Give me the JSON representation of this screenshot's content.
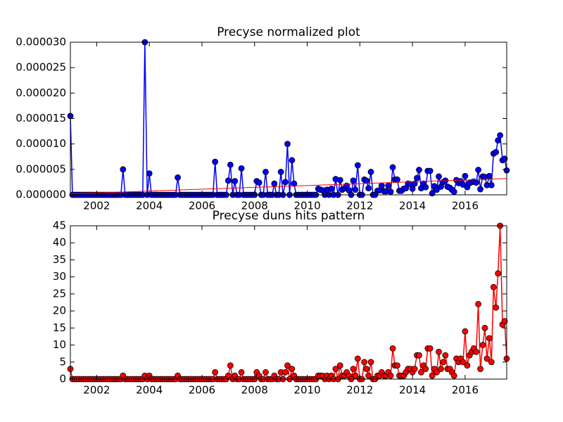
{
  "chart_data": [
    {
      "type": "line",
      "title": "Precyse normalized plot",
      "x": [
        2001,
        2001.08,
        2001.17,
        2001.25,
        2001.33,
        2001.42,
        2001.5,
        2001.58,
        2001.67,
        2001.75,
        2001.83,
        2001.92,
        2002,
        2002.08,
        2002.17,
        2002.25,
        2002.33,
        2002.42,
        2002.5,
        2002.58,
        2002.67,
        2002.75,
        2002.83,
        2002.92,
        2003,
        2003.08,
        2003.17,
        2003.25,
        2003.33,
        2003.42,
        2003.5,
        2003.58,
        2003.67,
        2003.75,
        2003.83,
        2003.92,
        2004,
        2004.08,
        2004.17,
        2004.25,
        2004.33,
        2004.42,
        2004.5,
        2004.58,
        2004.67,
        2004.75,
        2004.83,
        2004.92,
        2005,
        2005.08,
        2005.17,
        2005.25,
        2005.33,
        2005.42,
        2005.5,
        2005.58,
        2005.67,
        2005.75,
        2005.83,
        2005.92,
        2006,
        2006.08,
        2006.17,
        2006.25,
        2006.33,
        2006.42,
        2006.5,
        2006.58,
        2006.67,
        2006.75,
        2006.83,
        2006.92,
        2007,
        2007.08,
        2007.17,
        2007.25,
        2007.33,
        2007.42,
        2007.5,
        2007.58,
        2007.67,
        2007.75,
        2007.83,
        2007.92,
        2008,
        2008.08,
        2008.17,
        2008.25,
        2008.33,
        2008.42,
        2008.5,
        2008.58,
        2008.67,
        2008.75,
        2008.83,
        2008.92,
        2009,
        2009.08,
        2009.17,
        2009.25,
        2009.33,
        2009.42,
        2009.5,
        2009.58,
        2009.67,
        2009.75,
        2009.83,
        2009.92,
        2010,
        2010.08,
        2010.17,
        2010.25,
        2010.33,
        2010.42,
        2010.5,
        2010.58,
        2010.67,
        2010.75,
        2010.83,
        2010.92,
        2011,
        2011.08,
        2011.17,
        2011.25,
        2011.33,
        2011.42,
        2011.5,
        2011.58,
        2011.67,
        2011.75,
        2011.83,
        2011.92,
        2012,
        2012.08,
        2012.17,
        2012.25,
        2012.33,
        2012.42,
        2012.5,
        2012.58,
        2012.67,
        2012.75,
        2012.83,
        2012.92,
        2013,
        2013.08,
        2013.17,
        2013.25,
        2013.33,
        2013.42,
        2013.5,
        2013.58,
        2013.67,
        2013.75,
        2013.83,
        2013.92,
        2014,
        2014.08,
        2014.17,
        2014.25,
        2014.33,
        2014.42,
        2014.5,
        2014.58,
        2014.67,
        2014.75,
        2014.83,
        2014.92,
        2015,
        2015.08,
        2015.17,
        2015.25,
        2015.33,
        2015.42,
        2015.5,
        2015.58,
        2015.67,
        2015.75,
        2015.83,
        2015.92,
        2016,
        2016.08,
        2016.17,
        2016.25,
        2016.33,
        2016.42,
        2016.5,
        2016.58,
        2016.67,
        2016.75,
        2016.83,
        2016.92,
        2017,
        2017.08,
        2017.17,
        2017.25,
        2017.33,
        2017.42,
        2017.5,
        2017.58
      ],
      "series": [
        {
          "color": "#0000ff",
          "marker": "o",
          "values": [
            1.55e-05,
            0,
            0,
            0,
            0,
            0,
            0,
            0,
            0,
            0,
            0,
            0,
            0,
            0,
            0,
            0,
            0,
            0,
            0,
            0,
            0,
            0,
            0,
            0,
            5e-06,
            0,
            0,
            0,
            0,
            0,
            0,
            0,
            0,
            0,
            3e-05,
            0,
            4.2e-06,
            0,
            0,
            0,
            0,
            0,
            0,
            0,
            0,
            0,
            0,
            0,
            0,
            3.4e-06,
            0,
            0,
            0,
            0,
            0,
            0,
            0,
            0,
            0,
            0,
            0,
            0,
            0,
            0,
            0,
            0,
            6.5e-06,
            0,
            0,
            0,
            0,
            0,
            2.8e-06,
            5.9e-06,
            0,
            2.7e-06,
            0,
            0,
            5.2e-06,
            0,
            0,
            0,
            0,
            0,
            0,
            2.7e-06,
            2.4e-06,
            0,
            0,
            4.5e-06,
            0,
            0,
            0,
            2.2e-06,
            0,
            0,
            4.5e-06,
            0,
            2.5e-06,
            1e-05,
            0,
            6.8e-06,
            2.2e-06,
            0,
            0,
            0,
            0,
            0,
            0,
            0,
            0,
            0,
            0,
            1.2e-06,
            1e-06,
            9e-07,
            0,
            1e-06,
            0,
            1.2e-06,
            0,
            3.1e-06,
            0,
            2.9e-06,
            1e-06,
            1.3e-06,
            1.8e-06,
            9e-07,
            0,
            2.8e-06,
            1e-06,
            5.8e-06,
            0,
            0,
            3e-06,
            2.8e-06,
            1.3e-06,
            4.5e-06,
            0,
            0,
            8e-07,
            9e-07,
            1.8e-06,
            7e-07,
            7e-07,
            1.8e-06,
            6e-07,
            5.4e-06,
            3e-06,
            3e-06,
            8e-07,
            8e-07,
            1.2e-06,
            1.3e-06,
            2.2e-06,
            2.1e-06,
            1.2e-06,
            2.2e-06,
            3.3e-06,
            4.9e-06,
            1.3e-06,
            2.2e-06,
            1.5e-06,
            4.7e-06,
            4.7e-06,
            3e-07,
            1.7e-06,
            1e-06,
            3.6e-06,
            1.6e-06,
            2.5e-06,
            2.8e-06,
            1.6e-06,
            1.4e-06,
            1e-06,
            6e-07,
            2.9e-06,
            2.3e-06,
            2.7e-06,
            2e-06,
            3.7e-06,
            1.5e-06,
            2.3e-06,
            2.5e-06,
            2.6e-06,
            2.4e-06,
            4.9e-06,
            1.1e-06,
            3.6e-06,
            3.5e-06,
            1.9e-06,
            3.7e-06,
            1.9e-06,
            8.1e-06,
            8.4e-06,
            1.07e-05,
            1.17e-05,
            6.8e-06,
            7.1e-06,
            4.8e-06
          ]
        },
        {
          "color": "#ff0000",
          "marker": "none",
          "x": [
            2001,
            2017.58
          ],
          "values": [
            2e-07,
            3.2e-06
          ]
        }
      ],
      "xlim": [
        2001,
        2017.58
      ],
      "xticks": [
        2002,
        2004,
        2006,
        2008,
        2010,
        2012,
        2014,
        2016
      ],
      "ylim": [
        0,
        3e-05
      ],
      "yticks": [
        {
          "value": 0,
          "label": "0.000000"
        },
        {
          "value": 5e-06,
          "label": "0.000005"
        },
        {
          "value": 1e-05,
          "label": "0.000010"
        },
        {
          "value": 1.5e-05,
          "label": "0.000015"
        },
        {
          "value": 2e-05,
          "label": "0.000020"
        },
        {
          "value": 2.5e-05,
          "label": "0.000025"
        },
        {
          "value": 3e-05,
          "label": "0.000030"
        }
      ]
    },
    {
      "type": "line",
      "title": "Precyse duns hits pattern",
      "x": [
        2001,
        2001.08,
        2001.17,
        2001.25,
        2001.33,
        2001.42,
        2001.5,
        2001.58,
        2001.67,
        2001.75,
        2001.83,
        2001.92,
        2002,
        2002.08,
        2002.17,
        2002.25,
        2002.33,
        2002.42,
        2002.5,
        2002.58,
        2002.67,
        2002.75,
        2002.83,
        2002.92,
        2003,
        2003.08,
        2003.17,
        2003.25,
        2003.33,
        2003.42,
        2003.5,
        2003.58,
        2003.67,
        2003.75,
        2003.83,
        2003.92,
        2004,
        2004.08,
        2004.17,
        2004.25,
        2004.33,
        2004.42,
        2004.5,
        2004.58,
        2004.67,
        2004.75,
        2004.83,
        2004.92,
        2005,
        2005.08,
        2005.17,
        2005.25,
        2005.33,
        2005.42,
        2005.5,
        2005.58,
        2005.67,
        2005.75,
        2005.83,
        2005.92,
        2006,
        2006.08,
        2006.17,
        2006.25,
        2006.33,
        2006.42,
        2006.5,
        2006.58,
        2006.67,
        2006.75,
        2006.83,
        2006.92,
        2007,
        2007.08,
        2007.17,
        2007.25,
        2007.33,
        2007.42,
        2007.5,
        2007.58,
        2007.67,
        2007.75,
        2007.83,
        2007.92,
        2008,
        2008.08,
        2008.17,
        2008.25,
        2008.33,
        2008.42,
        2008.5,
        2008.58,
        2008.67,
        2008.75,
        2008.83,
        2008.92,
        2009,
        2009.08,
        2009.17,
        2009.25,
        2009.33,
        2009.42,
        2009.5,
        2009.58,
        2009.67,
        2009.75,
        2009.83,
        2009.92,
        2010,
        2010.08,
        2010.17,
        2010.25,
        2010.33,
        2010.42,
        2010.5,
        2010.58,
        2010.67,
        2010.75,
        2010.83,
        2010.92,
        2011,
        2011.08,
        2011.17,
        2011.25,
        2011.33,
        2011.42,
        2011.5,
        2011.58,
        2011.67,
        2011.75,
        2011.83,
        2011.92,
        2012,
        2012.08,
        2012.17,
        2012.25,
        2012.33,
        2012.42,
        2012.5,
        2012.58,
        2012.67,
        2012.75,
        2012.83,
        2012.92,
        2013,
        2013.08,
        2013.17,
        2013.25,
        2013.33,
        2013.42,
        2013.5,
        2013.58,
        2013.67,
        2013.75,
        2013.83,
        2013.92,
        2014,
        2014.08,
        2014.17,
        2014.25,
        2014.33,
        2014.42,
        2014.5,
        2014.58,
        2014.67,
        2014.75,
        2014.83,
        2014.92,
        2015,
        2015.08,
        2015.17,
        2015.25,
        2015.33,
        2015.42,
        2015.5,
        2015.58,
        2015.67,
        2015.75,
        2015.83,
        2015.92,
        2016,
        2016.08,
        2016.17,
        2016.25,
        2016.33,
        2016.42,
        2016.5,
        2016.58,
        2016.67,
        2016.75,
        2016.83,
        2016.92,
        2017,
        2017.08,
        2017.17,
        2017.25,
        2017.33,
        2017.42,
        2017.5,
        2017.58
      ],
      "series": [
        {
          "color": "#ff0000",
          "marker": "o",
          "values": [
            3,
            0,
            0,
            0,
            0,
            0,
            0,
            0,
            0,
            0,
            0,
            0,
            0,
            0,
            0,
            0,
            0,
            0,
            0,
            0,
            0,
            0,
            0,
            0,
            1,
            0,
            0,
            0,
            0,
            0,
            0,
            0,
            0,
            0,
            1,
            0,
            1,
            0,
            0,
            0,
            0,
            0,
            0,
            0,
            0,
            0,
            0,
            0,
            0,
            1,
            0,
            0,
            0,
            0,
            0,
            0,
            0,
            0,
            0,
            0,
            0,
            0,
            0,
            0,
            0,
            0,
            2,
            0,
            0,
            0,
            0,
            0,
            1,
            4,
            0,
            1,
            0,
            0,
            2,
            0,
            0,
            0,
            0,
            0,
            0,
            2,
            1,
            0,
            0,
            2,
            0,
            0,
            0,
            1,
            0,
            0,
            2,
            0,
            2,
            4,
            0,
            3,
            1,
            0,
            0,
            0,
            0,
            0,
            0,
            0,
            0,
            0,
            0,
            1,
            1,
            1,
            0,
            1,
            0,
            1,
            0,
            3,
            0,
            4,
            1,
            1,
            2,
            1,
            0,
            3,
            1,
            6,
            0,
            0,
            5,
            3,
            1,
            5,
            0,
            0,
            1,
            1,
            2,
            1,
            1,
            2,
            1,
            9,
            4,
            4,
            1,
            1,
            1,
            2,
            3,
            3,
            2,
            3,
            7,
            7,
            2,
            4,
            3,
            9,
            9,
            1,
            3,
            2,
            8,
            3,
            5,
            7,
            3,
            3,
            2,
            1,
            6,
            5,
            6,
            5,
            14,
            4,
            7,
            8,
            9,
            8,
            22,
            3,
            10,
            15,
            6,
            12,
            5,
            27,
            21,
            31,
            45,
            16,
            17,
            6
          ]
        }
      ],
      "xlim": [
        2001,
        2017.58
      ],
      "xticks": [
        2002,
        2004,
        2006,
        2008,
        2010,
        2012,
        2014,
        2016
      ],
      "ylim": [
        0,
        45
      ],
      "yticks": [
        0,
        5,
        10,
        15,
        20,
        25,
        30,
        35,
        40,
        45
      ]
    }
  ]
}
